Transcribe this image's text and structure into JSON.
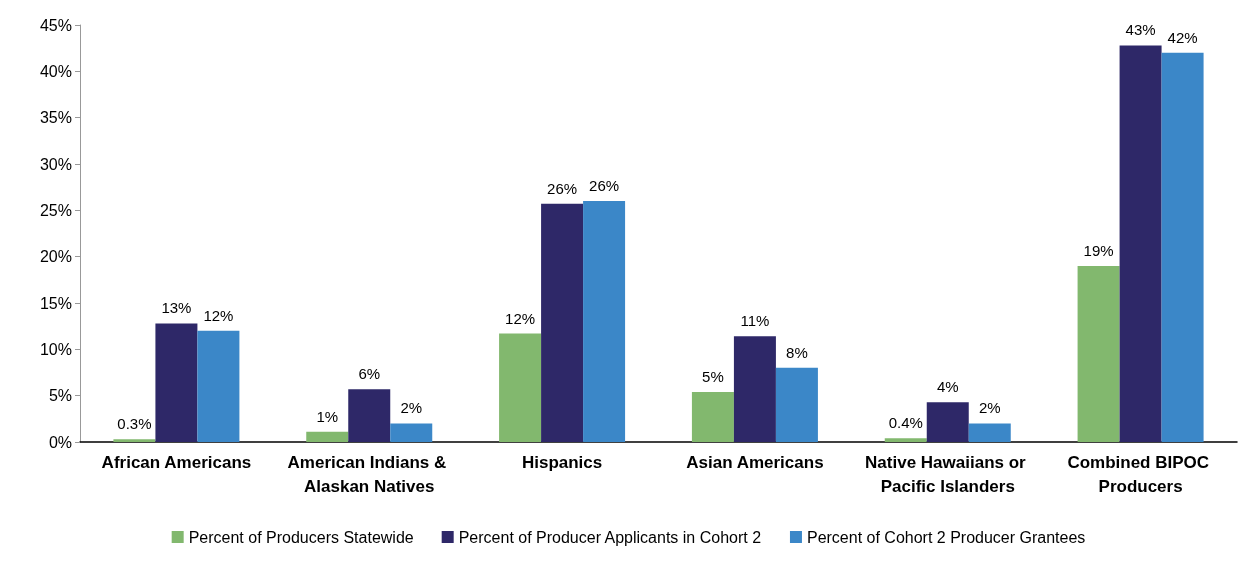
{
  "chart_data": {
    "type": "bar",
    "categories": [
      "African Americans",
      "American Indians & Alaskan Natives",
      "Hispanics",
      "Asian Americans",
      "Native Hawaiians or Pacific Islanders",
      "Combined BIPOC Producers"
    ],
    "series": [
      {
        "name": "Percent of Producers Statewide",
        "color": "#82b86e",
        "values": [
          0.3,
          1.1,
          11.7,
          5.4,
          0.4,
          19.0
        ],
        "value_labels": [
          "0.3%",
          "1%",
          "12%",
          "5%",
          "0.4%",
          "19%"
        ]
      },
      {
        "name": "Percent of Producer Applicants in Cohort 2",
        "color": "#2e2868",
        "values": [
          12.8,
          5.7,
          25.7,
          11.4,
          4.3,
          42.8
        ],
        "value_labels": [
          "13%",
          "6%",
          "26%",
          "11%",
          "4%",
          "43%"
        ]
      },
      {
        "name": "Percent of Cohort 2 Producer Grantees",
        "color": "#3b87c8",
        "values": [
          12.0,
          2.0,
          26.0,
          8.0,
          2.0,
          42.0
        ],
        "value_labels": [
          "12%",
          "2%",
          "26%",
          "8%",
          "2%",
          "42%"
        ]
      }
    ],
    "ylim": [
      0,
      45
    ],
    "yticks": [
      {
        "value": 0,
        "label": "0%"
      },
      {
        "value": 5,
        "label": "5%"
      },
      {
        "value": 10,
        "label": "10%"
      },
      {
        "value": 15,
        "label": "15%"
      },
      {
        "value": 20,
        "label": "20%"
      },
      {
        "value": 25,
        "label": "25%"
      },
      {
        "value": 30,
        "label": "30%"
      },
      {
        "value": 35,
        "label": "35%"
      },
      {
        "value": 40,
        "label": "40%"
      },
      {
        "value": 45,
        "label": "45%"
      }
    ],
    "grid": false,
    "legend": "bottom"
  }
}
